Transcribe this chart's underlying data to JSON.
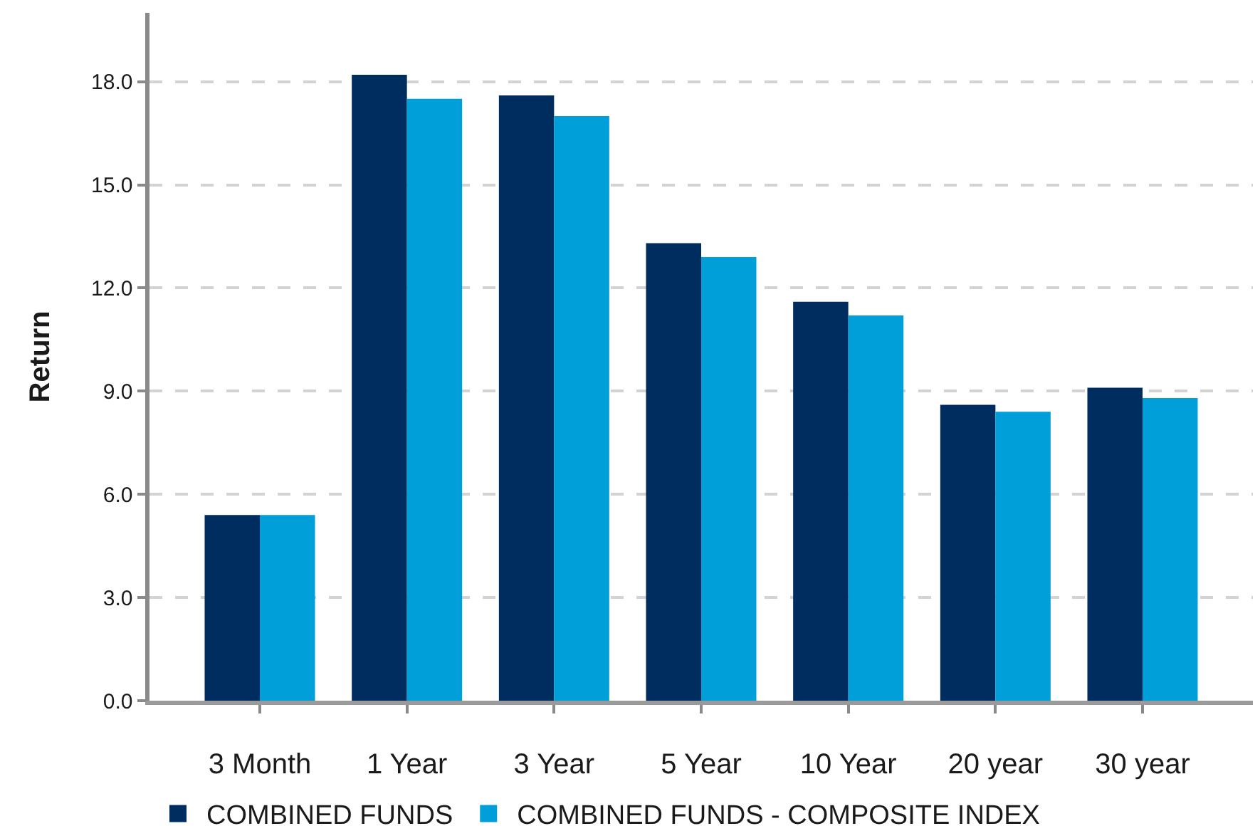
{
  "chart_data": {
    "type": "bar",
    "ylabel": "Return",
    "categories": [
      "3 Month",
      "1 Year",
      "3 Year",
      "5 Year",
      "10 Year",
      "20 year",
      "30 year"
    ],
    "series": [
      {
        "name": "COMBINED FUNDS",
        "color": "#002d5f",
        "values": [
          5.4,
          18.2,
          17.6,
          13.3,
          11.6,
          8.6,
          9.1
        ]
      },
      {
        "name": "COMBINED FUNDS - COMPOSITE INDEX",
        "color": "#009fd9",
        "values": [
          5.4,
          17.5,
          17.0,
          12.9,
          11.2,
          8.4,
          8.8
        ]
      }
    ],
    "ylim": [
      0,
      20
    ],
    "yticks": [
      {
        "value": 0,
        "label": "0.0"
      },
      {
        "value": 3,
        "label": "3.0"
      },
      {
        "value": 6,
        "label": "6.0"
      },
      {
        "value": 9,
        "label": "9.0"
      },
      {
        "value": 12,
        "label": "12.0"
      },
      {
        "value": 15,
        "label": "15.0"
      },
      {
        "value": 18,
        "label": "18.0"
      }
    ],
    "grid": "y",
    "legend": "bottom left"
  }
}
